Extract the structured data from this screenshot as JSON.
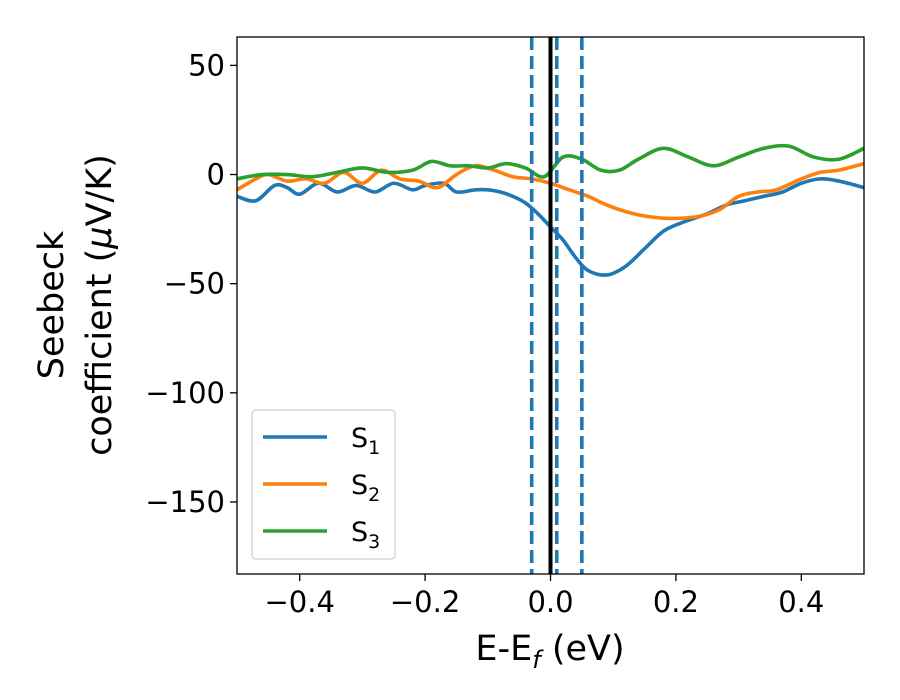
{
  "chart_data": {
    "type": "line",
    "xlabel": "E-E_f (eV)",
    "xlabel_main": "E-E",
    "xlabel_sub": "f",
    "xlabel_unit": " (eV)",
    "ylabel_line1": "Seebeck",
    "ylabel_line2_pre": "coefficient  (",
    "ylabel_mu": "μ",
    "ylabel_line2_post": "V/K)",
    "xlim": [
      -0.5,
      0.5
    ],
    "ylim": [
      -183,
      63
    ],
    "x_ticks": [
      -0.4,
      -0.2,
      0.0,
      0.2,
      0.4
    ],
    "x_tick_labels": [
      "−0.4",
      "−0.2",
      "0.0",
      "0.2",
      "0.4"
    ],
    "y_ticks": [
      50,
      0,
      -50,
      -100,
      -150
    ],
    "y_tick_labels": [
      "50",
      "0",
      "−50",
      "−100",
      "−150"
    ],
    "grid": false,
    "legend_position": "lower-left",
    "vlines": [
      {
        "x": -0.03,
        "style": "dashed",
        "color": "#1f77b4"
      },
      {
        "x": 0.01,
        "style": "dashed",
        "color": "#1f77b4"
      },
      {
        "x": 0.05,
        "style": "dashed",
        "color": "#1f77b4"
      },
      {
        "x": 0.0,
        "style": "solid",
        "color": "#000000"
      }
    ],
    "series": [
      {
        "name": "S1",
        "label_main": "S",
        "label_sub": "1",
        "color": "#1f77b4",
        "x": [
          -0.5,
          -0.47,
          -0.44,
          -0.42,
          -0.4,
          -0.37,
          -0.34,
          -0.31,
          -0.28,
          -0.25,
          -0.22,
          -0.2,
          -0.17,
          -0.15,
          -0.12,
          -0.1,
          -0.08,
          -0.06,
          -0.04,
          -0.02,
          0.0,
          0.02,
          0.04,
          0.06,
          0.09,
          0.12,
          0.15,
          0.18,
          0.21,
          0.25,
          0.28,
          0.31,
          0.34,
          0.37,
          0.4,
          0.43,
          0.46,
          0.5
        ],
        "y": [
          -10,
          -12,
          -5,
          -6,
          -9,
          -4,
          -8,
          -5,
          -8,
          -4,
          -7,
          -5,
          -4,
          -8,
          -7,
          -7,
          -8,
          -10,
          -13,
          -18,
          -24,
          -30,
          -38,
          -44,
          -46,
          -42,
          -34,
          -26,
          -22,
          -18,
          -14,
          -12,
          -10,
          -8,
          -4,
          -2,
          -3,
          -6
        ]
      },
      {
        "name": "S2",
        "label_main": "S",
        "label_sub": "2",
        "color": "#ff7f0e",
        "x": [
          -0.5,
          -0.47,
          -0.45,
          -0.42,
          -0.39,
          -0.36,
          -0.33,
          -0.3,
          -0.27,
          -0.24,
          -0.21,
          -0.18,
          -0.15,
          -0.12,
          -0.09,
          -0.06,
          -0.03,
          0.0,
          0.03,
          0.06,
          0.09,
          0.12,
          0.15,
          0.18,
          0.21,
          0.24,
          0.27,
          0.3,
          0.33,
          0.36,
          0.4,
          0.43,
          0.46,
          0.5
        ],
        "y": [
          -7,
          -2,
          0,
          -3,
          -2,
          -4,
          1,
          -4,
          2,
          -2,
          -3,
          -6,
          0,
          4,
          2,
          -1,
          -2,
          -4,
          -7,
          -10,
          -14,
          -17,
          -19,
          -20,
          -20,
          -19,
          -16,
          -10,
          -8,
          -7,
          -2,
          1,
          2,
          5
        ]
      },
      {
        "name": "S3",
        "label_main": "S",
        "label_sub": "3",
        "color": "#2ca02c",
        "x": [
          -0.5,
          -0.46,
          -0.42,
          -0.38,
          -0.34,
          -0.3,
          -0.26,
          -0.22,
          -0.19,
          -0.16,
          -0.13,
          -0.1,
          -0.07,
          -0.04,
          -0.01,
          0.02,
          0.05,
          0.08,
          0.11,
          0.14,
          0.18,
          0.22,
          0.26,
          0.3,
          0.34,
          0.38,
          0.42,
          0.46,
          0.5
        ],
        "y": [
          -2,
          0,
          0,
          -1,
          1,
          3,
          1,
          2,
          6,
          4,
          4,
          3,
          5,
          3,
          -1,
          8,
          7,
          2,
          2,
          7,
          12,
          8,
          4,
          8,
          12,
          13,
          8,
          7,
          12
        ]
      }
    ]
  }
}
